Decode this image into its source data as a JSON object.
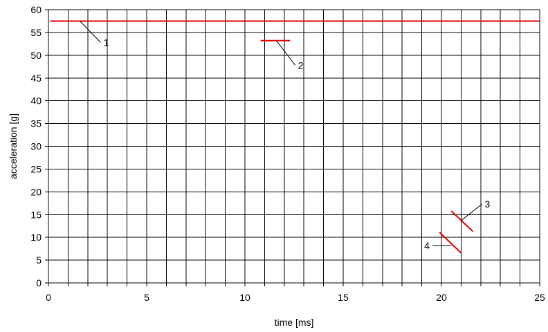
{
  "chart_data": {
    "type": "line",
    "xlabel": "time [ms]",
    "ylabel": "acceleration [g]",
    "xlim": [
      0,
      25
    ],
    "ylim": [
      0,
      60
    ],
    "xticks": [
      0,
      5,
      10,
      15,
      20,
      25
    ],
    "yticks": [
      0,
      5,
      10,
      15,
      20,
      25,
      30,
      35,
      40,
      45,
      50,
      55,
      60
    ],
    "grid": true,
    "x_grid_step": 1,
    "y_grid_step": 5,
    "line_color": "#e00000",
    "series": [
      {
        "x": [
          0.1,
          25
        ],
        "y": [
          57.5,
          57.5
        ]
      },
      {
        "x": [
          10.8,
          12.3
        ],
        "y": [
          53.2,
          53.2
        ]
      },
      {
        "x": [
          20.5,
          21.6
        ],
        "y": [
          15.8,
          11.3
        ]
      },
      {
        "x": [
          19.9,
          21.0
        ],
        "y": [
          11.1,
          6.6
        ]
      }
    ],
    "annotations": [
      {
        "text": "1",
        "point": [
          1.6,
          57.5
        ],
        "label_at": [
          2.8,
          52.8
        ]
      },
      {
        "text": "2",
        "point": [
          11.6,
          53.2
        ],
        "label_at": [
          12.7,
          47.8
        ]
      },
      {
        "text": "3",
        "point": [
          21.0,
          13.7
        ],
        "label_at": [
          22.2,
          17.3
        ]
      },
      {
        "text": "4",
        "point": [
          20.5,
          8.2
        ],
        "label_at": [
          19.4,
          8.2
        ]
      }
    ]
  }
}
